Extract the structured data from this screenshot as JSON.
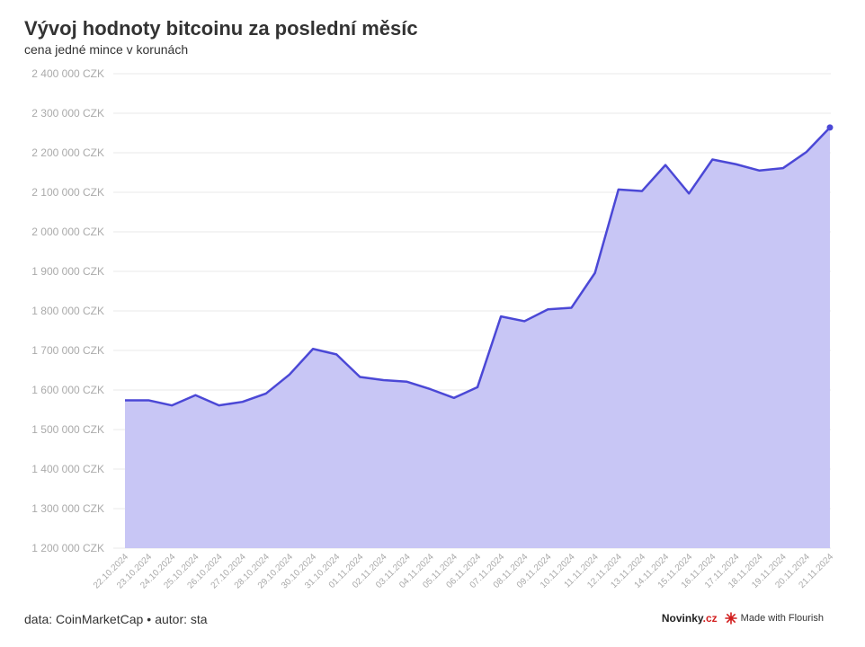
{
  "header": {
    "title": "Vývoj hodnoty bitcoinu za poslední měsíc",
    "subtitle": "cena jedné mince v korunách"
  },
  "footer": {
    "source": "data: CoinMarketCap",
    "separator": "•",
    "author": "autor: sta",
    "brand_main": "Novinky",
    "brand_suffix": ".cz",
    "made_with": "Made with Flourish",
    "flourish_icon": "flourish-logo-icon"
  },
  "colors": {
    "line": "#4b48d6",
    "area": "#c8c6f5",
    "grid": "#e8e8e8",
    "axis_text": "#aaaaaa"
  },
  "chart_data": {
    "type": "area",
    "x": [
      "22.10.2024",
      "23.10.2024",
      "24.10.2024",
      "25.10.2024",
      "26.10.2024",
      "27.10.2024",
      "28.10.2024",
      "29.10.2024",
      "30.10.2024",
      "31.10.2024",
      "01.11.2024",
      "02.11.2024",
      "03.11.2024",
      "04.11.2024",
      "05.11.2024",
      "06.11.2024",
      "07.11.2024",
      "08.11.2024",
      "09.11.2024",
      "10.11.2024",
      "11.11.2024",
      "12.11.2024",
      "13.11.2024",
      "14.11.2024",
      "15.11.2024",
      "16.11.2024",
      "17.11.2024",
      "18.11.2024",
      "19.11.2024",
      "20.11.2024",
      "21.11.2024"
    ],
    "values": [
      1574000,
      1574000,
      1561000,
      1587000,
      1561000,
      1570000,
      1591000,
      1639000,
      1704000,
      1690000,
      1633000,
      1625000,
      1621000,
      1602000,
      1580000,
      1607000,
      1786000,
      1774000,
      1804000,
      1808000,
      1896000,
      2107000,
      2103000,
      2169000,
      2097000,
      2183000,
      2171000,
      2155000,
      2161000,
      2202000,
      2264000
    ],
    "ylim": [
      1200000,
      2400000
    ],
    "yticks": [
      2400000,
      2300000,
      2200000,
      2100000,
      2000000,
      1900000,
      1800000,
      1700000,
      1600000,
      1500000,
      1400000,
      1300000,
      1200000
    ],
    "ytick_labels": [
      "2 400 000 CZK",
      "2 300 000 CZK",
      "2 200 000 CZK",
      "2 100 000 CZK",
      "2 000 000 CZK",
      "1 900 000 CZK",
      "1 800 000 CZK",
      "1 700 000 CZK",
      "1 600 000 CZK",
      "1 500 000 CZK",
      "1 400 000 CZK",
      "1 300 000 CZK",
      "1 200 000 CZK"
    ],
    "xlabel": "",
    "ylabel": "",
    "grid": true,
    "legend": "none"
  }
}
